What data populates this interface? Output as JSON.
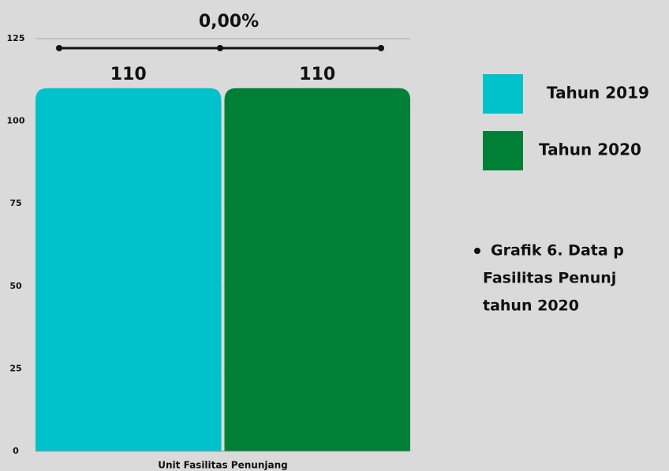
{
  "chart_data": {
    "type": "bar",
    "categories": [
      "Unit Fasilitas Penunjang"
    ],
    "series": [
      {
        "name": "Tahun 2019",
        "color": "#00c2cb",
        "values": [
          110
        ]
      },
      {
        "name": "Tahun 2020",
        "color": "#008037",
        "values": [
          110
        ]
      }
    ],
    "annotation": "0,00%",
    "note_lines": [
      "Grafik 6. Data p",
      "Fasilitas Penunj",
      "tahun 2020"
    ],
    "ylim": [
      0,
      125
    ],
    "yticks": [
      0,
      25,
      50,
      75,
      100,
      125
    ],
    "grid": true
  }
}
